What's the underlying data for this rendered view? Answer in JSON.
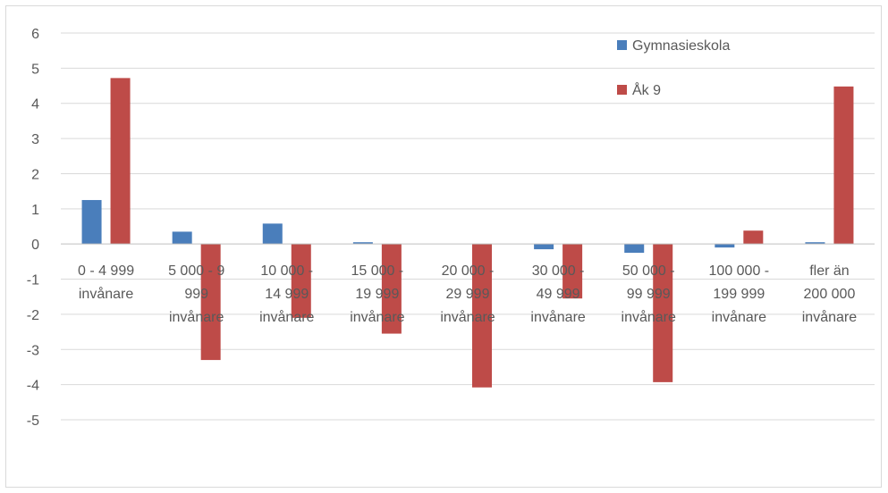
{
  "chart_data": {
    "type": "bar",
    "categories": [
      [
        "0 - 4 999",
        "invånare"
      ],
      [
        "5 000 - 9",
        "999",
        "invånare"
      ],
      [
        "10 000 -",
        "14 999",
        "invånare"
      ],
      [
        "15 000 -",
        "19 999",
        "invånare"
      ],
      [
        "20 000 -",
        "29 999",
        "invånare"
      ],
      [
        "30 000 -",
        "49 999",
        "invånare"
      ],
      [
        "50 000 -",
        "99 999",
        "invånare"
      ],
      [
        "100 000 -",
        "199 999",
        "invånare"
      ],
      [
        "fler än",
        "200 000",
        "invånare"
      ]
    ],
    "series": [
      {
        "name": "Gymnasieskola",
        "color": "#4a7ebb",
        "values": [
          1.25,
          0.35,
          0.58,
          0.05,
          0.0,
          -0.15,
          -0.25,
          -0.1,
          0.05
        ]
      },
      {
        "name": "Åk 9",
        "color": "#be4b48",
        "values": [
          4.72,
          -3.3,
          -2.1,
          -2.55,
          -4.08,
          -1.55,
          -3.93,
          0.38,
          4.48
        ]
      }
    ],
    "ylim": [
      -5,
      6
    ],
    "yticks": [
      -5,
      -4,
      -3,
      -2,
      -1,
      0,
      1,
      2,
      3,
      4,
      5,
      6
    ],
    "grid": true,
    "legend": "top-right"
  }
}
